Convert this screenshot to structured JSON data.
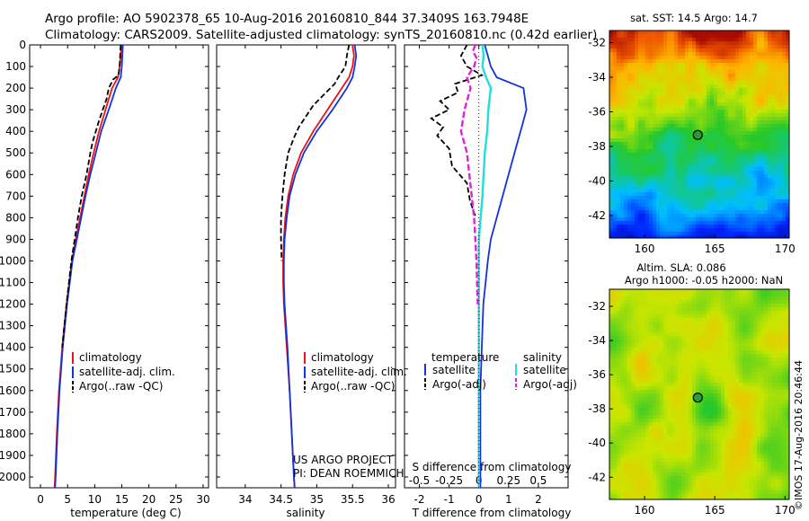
{
  "header": {
    "line1": "Argo profile: AO 5902378_65 10-Aug-2016 20160810_844 37.3409S 163.7948E",
    "line2": "Climatology: CARS2009. Satellite-adjusted climatology: synTS_20160810.nc (0.42d earlier)"
  },
  "footer": {
    "project": "US ARGO PROJECT",
    "pi": "PI: DEAN ROEMMICH",
    "credit": "©IMOS 17-Aug-2016 20:46:44"
  },
  "colors": {
    "climatology": "#ee1111",
    "satellite": "#1133dd",
    "argo": "#000000",
    "sal_satellite": "#22dddd",
    "sal_argo": "#dd22dd"
  },
  "chart_data": [
    {
      "type": "line",
      "title": "",
      "xlabel": "temperature (deg C)",
      "ylabel": "",
      "xlim": [
        -2,
        31
      ],
      "ylim": [
        2050,
        0
      ],
      "xticks": [
        "0",
        "5",
        "10",
        "15",
        "20",
        "25",
        "30"
      ],
      "yticks": [
        "0",
        "100",
        "200",
        "300",
        "400",
        "500",
        "600",
        "700",
        "800",
        "900",
        "1000",
        "1100",
        "1200",
        "1300",
        "1400",
        "1500",
        "1600",
        "1700",
        "1800",
        "1900",
        "2000"
      ],
      "legend": [
        "climatology",
        "satellite-adj. clim.",
        "Argo(..raw -QC)"
      ],
      "series": [
        {
          "name": "climatology",
          "depth": [
            0,
            50,
            100,
            150,
            200,
            300,
            400,
            500,
            600,
            700,
            800,
            900,
            1000,
            1200,
            1400,
            1600,
            1800,
            2000,
            2050
          ],
          "values": [
            14.9,
            14.8,
            14.6,
            14.3,
            13.2,
            12.0,
            10.8,
            9.8,
            8.9,
            8.1,
            7.3,
            6.5,
            5.8,
            4.8,
            4.0,
            3.4,
            3.0,
            2.7,
            2.6
          ]
        },
        {
          "name": "satellite-adj. clim.",
          "depth": [
            0,
            50,
            100,
            150,
            200,
            300,
            400,
            500,
            600,
            700,
            800,
            900,
            1000,
            1200,
            1400,
            1600,
            1800,
            2000,
            2050
          ],
          "values": [
            15.2,
            15.1,
            15.0,
            14.8,
            13.9,
            12.6,
            11.2,
            10.2,
            9.2,
            8.3,
            7.5,
            6.7,
            5.9,
            4.9,
            4.1,
            3.5,
            3.1,
            2.8,
            2.7
          ]
        },
        {
          "name": "Argo(..raw -QC)",
          "depth": [
            0,
            50,
            100,
            140,
            160,
            200,
            250,
            300,
            350,
            400,
            450,
            500,
            600,
            700,
            800,
            900,
            1000,
            1200,
            1400
          ],
          "values": [
            14.8,
            14.7,
            14.6,
            14.4,
            13.4,
            12.6,
            12.2,
            11.5,
            10.8,
            10.2,
            9.6,
            9.2,
            8.5,
            7.6,
            6.9,
            6.3,
            5.7,
            4.8,
            4.0
          ]
        }
      ]
    },
    {
      "type": "line",
      "title": "",
      "xlabel": "salinity",
      "ylabel": "",
      "xlim": [
        33.6,
        36.1
      ],
      "ylim": [
        2050,
        0
      ],
      "xticks": [
        "34",
        "34.5",
        "35",
        "35.5",
        "36"
      ],
      "legend": [
        "climatology",
        "satellite-adj. clim.",
        "Argo(..raw -QC)"
      ],
      "series": [
        {
          "name": "climatology",
          "depth": [
            0,
            50,
            100,
            150,
            200,
            300,
            400,
            500,
            600,
            700,
            800,
            900,
            1000,
            1100,
            1200,
            1300,
            1400,
            1600,
            1800,
            2000,
            2050
          ],
          "values": [
            35.5,
            35.52,
            35.5,
            35.45,
            35.35,
            35.15,
            34.95,
            34.78,
            34.67,
            34.6,
            34.56,
            34.54,
            34.53,
            34.53,
            34.54,
            34.56,
            34.58,
            34.62,
            34.65,
            34.68,
            34.69
          ]
        },
        {
          "name": "satellite-adj. clim.",
          "depth": [
            0,
            50,
            100,
            150,
            200,
            300,
            400,
            500,
            600,
            700,
            800,
            900,
            1000,
            1100,
            1200,
            1300,
            1400,
            1600,
            1800,
            2000,
            2050
          ],
          "values": [
            35.53,
            35.55,
            35.53,
            35.5,
            35.42,
            35.22,
            35.0,
            34.82,
            34.7,
            34.62,
            34.58,
            34.55,
            34.54,
            34.54,
            34.55,
            34.57,
            34.59,
            34.62,
            34.65,
            34.68,
            34.69
          ]
        },
        {
          "name": "Argo(..raw -QC)",
          "depth": [
            0,
            50,
            100,
            150,
            180,
            230,
            280,
            330,
            380,
            430,
            500,
            600,
            700,
            800,
            900,
            1000
          ],
          "values": [
            35.45,
            35.42,
            35.4,
            35.3,
            35.25,
            35.1,
            34.95,
            34.85,
            34.75,
            34.68,
            34.6,
            34.55,
            34.52,
            34.5,
            34.5,
            34.51
          ]
        }
      ]
    },
    {
      "type": "line",
      "title": "",
      "xlabel": "T difference from climatology",
      "top_label": "S difference from climatology",
      "ylabel": "",
      "xlim": [
        -2.5,
        3.0
      ],
      "ylim": [
        2050,
        0
      ],
      "xticks": [
        "-2",
        "-1",
        "0",
        "1",
        "2"
      ],
      "top_ticks": [
        "-0.5",
        "-0.25",
        "0",
        "0.25",
        "0.5"
      ],
      "legend_groups": [
        {
          "title": "temperature",
          "items": [
            "satellite",
            "Argo(-adj)"
          ]
        },
        {
          "title": "salinity",
          "items": [
            "satellite",
            "Argo(-adj)"
          ]
        }
      ],
      "series": [
        {
          "name": "T satellite",
          "depth": [
            0,
            50,
            100,
            150,
            200,
            300,
            400,
            500,
            600,
            700,
            800,
            900,
            1000,
            1200,
            1400,
            1600,
            1800,
            2000,
            2050
          ],
          "values": [
            0.2,
            0.3,
            0.4,
            0.6,
            1.5,
            1.6,
            1.4,
            1.2,
            1.0,
            0.8,
            0.6,
            0.4,
            0.3,
            0.15,
            0.1,
            0.05,
            0.05,
            0.05,
            0.05
          ]
        },
        {
          "name": "T Argo(-adj)",
          "depth": [
            0,
            50,
            100,
            140,
            180,
            220,
            260,
            300,
            340,
            380,
            420,
            480,
            560,
            640,
            720,
            800
          ],
          "values": [
            -0.4,
            -0.6,
            -0.4,
            0.1,
            -0.8,
            -0.7,
            -1.3,
            -1.0,
            -1.6,
            -1.2,
            -1.4,
            -1.0,
            -0.9,
            -0.4,
            -0.3,
            -0.1
          ]
        },
        {
          "name": "S satellite",
          "depth": [
            0,
            50,
            100,
            150,
            200,
            300,
            400,
            500,
            700,
            900,
            1100,
            1400,
            1700,
            2000,
            2050
          ],
          "values": [
            0.03,
            0.04,
            0.03,
            0.06,
            0.1,
            0.08,
            0.07,
            0.05,
            0.03,
            0.0,
            0.0,
            0.0,
            0.0,
            0.0,
            0.0
          ]
        },
        {
          "name": "S Argo(-adj)",
          "depth": [
            0,
            30,
            60,
            100,
            150,
            200,
            300,
            400,
            500,
            600,
            700,
            800,
            900,
            1000,
            1200
          ],
          "values": [
            -0.03,
            -0.05,
            -0.02,
            -0.04,
            -0.1,
            -0.07,
            -0.12,
            -0.15,
            -0.1,
            -0.08,
            -0.06,
            -0.04,
            -0.03,
            -0.02,
            -0.01
          ]
        }
      ]
    },
    {
      "type": "heatmap",
      "title": "sat. SST: 14.5 Argo: 14.7",
      "xlim": [
        157.5,
        170.3
      ],
      "ylim": [
        -43.3,
        -31.3
      ],
      "xticks": [
        "160",
        "165",
        "170"
      ],
      "yticks": [
        "-32",
        "-34",
        "-36",
        "-38",
        "-40",
        "-42"
      ],
      "marker": {
        "lon": 163.79,
        "lat": -37.34
      },
      "description": "sea surface temperature"
    },
    {
      "type": "heatmap",
      "title": "Altim. SLA: 0.086",
      "subtitle": "Argo h1000: -0.05 h2000: NaN",
      "xlim": [
        157.5,
        170.3
      ],
      "ylim": [
        -43.3,
        -31.0
      ],
      "xticks": [
        "160",
        "165",
        "170"
      ],
      "yticks": [
        "-32",
        "-34",
        "-36",
        "-38",
        "-40",
        "-42"
      ],
      "marker": {
        "lon": 163.79,
        "lat": -37.34
      },
      "description": "sea level anomaly"
    }
  ]
}
